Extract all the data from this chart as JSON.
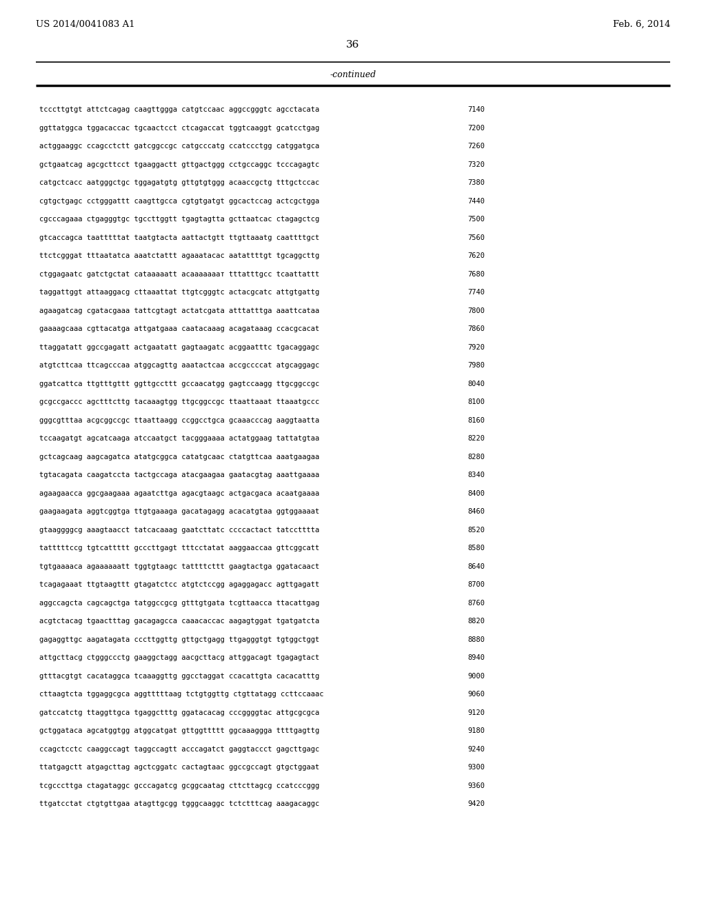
{
  "header_left": "US 2014/0041083 A1",
  "header_right": "Feb. 6, 2014",
  "page_number": "36",
  "continued_label": "-continued",
  "background_color": "#ffffff",
  "text_color": "#000000",
  "sequence_lines": [
    [
      "tcccttgtgt attctcagag caagttggga catgtccaac aggccgggtc agcctacata",
      "7140"
    ],
    [
      "ggttatggca tggacaccac tgcaactcct ctcagaccat tggtcaaggt gcatcctgag",
      "7200"
    ],
    [
      "actggaaggc ccagcctctt gatcggccgc catgcccatg ccatccctgg catggatgca",
      "7260"
    ],
    [
      "gctgaatcag agcgcttcct tgaaggactt gttgactggg cctgccaggc tcccagagtc",
      "7320"
    ],
    [
      "catgctcacc aatgggctgc tggagatgtg gttgtgtggg acaaccgctg tttgctccac",
      "7380"
    ],
    [
      "cgtgctgagc cctgggattt caagttgcca cgtgtgatgt ggcactccag actcgctgga",
      "7440"
    ],
    [
      "cgcccagaaa ctgagggtgc tgccttggtt tgagtagtta gcttaatcac ctagagctcg",
      "7500"
    ],
    [
      "gtcaccagca taatttttat taatgtacta aattactgtt ttgttaaatg caattttgct",
      "7560"
    ],
    [
      "ttctcgggat tttaatatca aaatctattt agaaatacac aatattttgt tgcaggcttg",
      "7620"
    ],
    [
      "ctggagaatc gatctgctat cataaaaatt acaaaaaaат tttatttgcc tcaattattt",
      "7680"
    ],
    [
      "taggattggt attaaggacg cttaaattat ttgtcgggtc actacgcatc attgtgattg",
      "7740"
    ],
    [
      "agaagatcag cgatacgaaa tattcgtagt actatcgata atttatttga aaattcataa",
      "7800"
    ],
    [
      "gaaaagcaaa cgttacatga attgatgaaa caatacaaag acagataaag ccacgcacat",
      "7860"
    ],
    [
      "ttaggatatt ggccgagatt actgaatatt gagtaagatc acggaatttc tgacaggagc",
      "7920"
    ],
    [
      "atgtcttcaa ttcagcccaa atggcagttg aaatactcaa accgccccat atgcaggagc",
      "7980"
    ],
    [
      "ggatcattca ttgtttgttt ggttgccttt gccaacatgg gagtccaagg ttgcggccgc",
      "8040"
    ],
    [
      "gcgccgaccc agctttcttg tacaaagtgg ttgcggccgc ttaattaaat ttaaatgccc",
      "8100"
    ],
    [
      "gggcgtttaa acgcggccgc ttaattaagg ccggcctgca gcaaacccag aaggtaatta",
      "8160"
    ],
    [
      "tccaagatgt agcatcaaga atccaatgct tacgggaaaa actatggaag tattatgtaa",
      "8220"
    ],
    [
      "gctcagcaag aagcagatca atatgcggca catatgcaac ctatgttcaa aaatgaagaa",
      "8280"
    ],
    [
      "tgtacagata caagatccta tactgccaga atacgaagaa gaatacgtag aaattgaaaa",
      "8340"
    ],
    [
      "agaagaacca ggcgaagaaa agaatcttga agacgtaagc actgacgaca acaatgaaaa",
      "8400"
    ],
    [
      "gaagaagata aggtcggtga ttgtgaaaga gacatagagg acacatgtaa ggtggaaaat",
      "8460"
    ],
    [
      "gtaaggggcg aaagtaacct tatcacaaag gaatcttatc ccccactact tatcctttta",
      "8520"
    ],
    [
      "tatttttccg tgtcattttt gcccttgagt tttcctatat aaggaaccaa gttcggcatt",
      "8580"
    ],
    [
      "tgtgaaaaca agaaaaaatt tggtgtaagc tattttcttt gaagtactga ggatacaact",
      "8640"
    ],
    [
      "tcagagaaat ttgtaagttt gtagatctcc atgtctccgg agaggagacc agttgagatt",
      "8700"
    ],
    [
      "aggccagcta cagcagctga tatggccgcg gtttgtgata tcgttaacca ttacattgag",
      "8760"
    ],
    [
      "acgtctacag tgaactttag gacagagcca caaacaccac aagagtggat tgatgatcta",
      "8820"
    ],
    [
      "gagaggttgc aagatagata cccttggttg gttgctgagg ttgagggtgt tgtggctggt",
      "8880"
    ],
    [
      "attgcttacg ctgggccctg gaaggctagg aacgcttacg attggacagt tgagagtact",
      "8940"
    ],
    [
      "gtttacgtgt cacataggca tcaaaggttg ggcctaggat ccacattgta cacacatttg",
      "9000"
    ],
    [
      "cttaagtcta tggaggcgca aggtttttaag tctgtggttg ctgttatagg ccttccaaac",
      "9060"
    ],
    [
      "gatccatctg ttaggttgca tgaggctttg ggatacacag cccggggtac attgcgcgca",
      "9120"
    ],
    [
      "gctggataca agcatggtgg atggcatgat gttggttttt ggcaaaggga ttttgagttg",
      "9180"
    ],
    [
      "ccagctcctc caaggccagt taggccagtt acccagatct gaggtaccct gagcttgagc",
      "9240"
    ],
    [
      "ttatgagctt atgagcttag agctcggatc cactagtaac ggccgccagt gtgctggaat",
      "9300"
    ],
    [
      "tcgcccttga ctagataggc gcccagatcg gcggcaatag cttcttagcg ccatcccggg",
      "9360"
    ],
    [
      "ttgatcctat ctgtgttgaa atagttgcgg tgggcaaggc tctctttcag aaagacaggc",
      "9420"
    ]
  ]
}
